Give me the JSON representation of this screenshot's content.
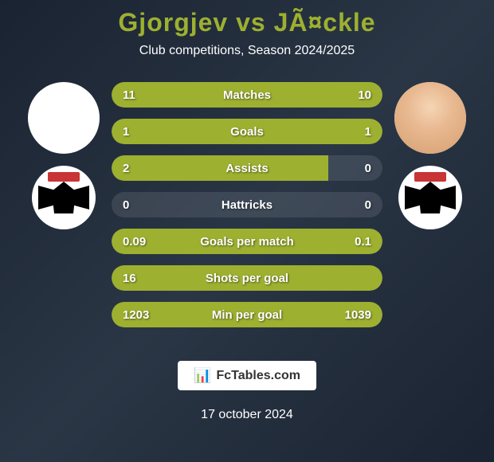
{
  "title": "Gjorgjev vs JÃ¤ckle",
  "subtitle": "Club competitions, Season 2024/2025",
  "player_left": {
    "name": "Gjorgjev",
    "club": "FC Aarau"
  },
  "player_right": {
    "name": "JÃ¤ckle",
    "club": "FC Aarau"
  },
  "stats": [
    {
      "label": "Matches",
      "left_value": "11",
      "right_value": "10",
      "left_pct": 50,
      "right_pct": 50
    },
    {
      "label": "Goals",
      "left_value": "1",
      "right_value": "1",
      "left_pct": 50,
      "right_pct": 50
    },
    {
      "label": "Assists",
      "left_value": "2",
      "right_value": "0",
      "left_pct": 80,
      "right_pct": 0
    },
    {
      "label": "Hattricks",
      "left_value": "0",
      "right_value": "0",
      "left_pct": 0,
      "right_pct": 0
    },
    {
      "label": "Goals per match",
      "left_value": "0.09",
      "right_value": "0.1",
      "left_pct": 50,
      "right_pct": 50
    },
    {
      "label": "Shots per goal",
      "left_value": "16",
      "right_value": "",
      "left_pct": 100,
      "right_pct": 0
    },
    {
      "label": "Min per goal",
      "left_value": "1203",
      "right_value": "1039",
      "left_pct": 50,
      "right_pct": 50
    }
  ],
  "footer": {
    "site": "FcTables.com",
    "date": "17 october 2024"
  },
  "colors": {
    "background": "#1a2332",
    "accent": "#9db030",
    "text": "#ffffff",
    "title": "#9db030"
  }
}
